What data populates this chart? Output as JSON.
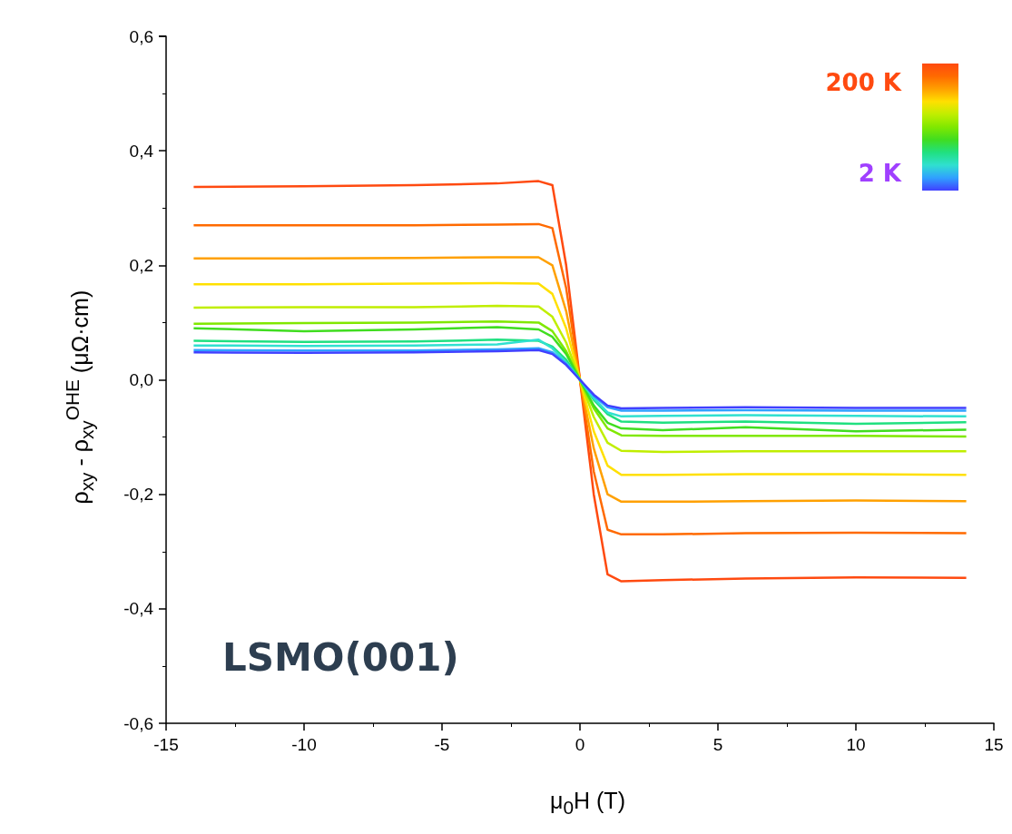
{
  "chart_data": {
    "type": "line",
    "xlabel": "μ$_{0}$H (T)",
    "ylabel": "ρ$_{xy}$ - ρ$_{xy}$$^{OHE}$ (μΩ·cm)",
    "annotations": [
      "LSMO(001)",
      "200 K",
      "2 K"
    ],
    "x": [
      -14,
      -10,
      -6,
      -3,
      -1.5,
      -1,
      -0.5,
      0,
      0.5,
      1,
      1.5,
      3,
      6,
      10,
      14
    ],
    "xlim": [
      -15,
      15
    ],
    "xticks": [
      -15,
      -10,
      -5,
      0,
      5,
      10,
      15
    ],
    "ylim": [
      -0.6,
      0.6
    ],
    "yticks": [
      {
        "value": -0.6,
        "label": "-0,6"
      },
      {
        "value": -0.4,
        "label": "-0,4"
      },
      {
        "value": -0.2,
        "label": "-0,2"
      },
      {
        "value": 0,
        "label": "0,0"
      },
      {
        "value": 0.2,
        "label": "0,2"
      },
      {
        "value": 0.4,
        "label": "0,4"
      },
      {
        "value": 0.6,
        "label": "0,6"
      }
    ],
    "series": [
      {
        "color": "#ff4a10",
        "values": [
          0.337,
          0.338,
          0.34,
          0.343,
          0.347,
          0.34,
          0.2,
          0,
          -0.2,
          -0.34,
          -0.352,
          -0.35,
          -0.347,
          -0.345,
          -0.346
        ]
      },
      {
        "color": "#ff6a00",
        "values": [
          0.27,
          0.27,
          0.27,
          0.271,
          0.272,
          0.265,
          0.16,
          0,
          -0.16,
          -0.262,
          -0.27,
          -0.27,
          -0.268,
          -0.267,
          -0.268
        ]
      },
      {
        "color": "#ffa000",
        "values": [
          0.212,
          0.212,
          0.213,
          0.214,
          0.214,
          0.2,
          0.12,
          0,
          -0.12,
          -0.2,
          -0.213,
          -0.213,
          -0.212,
          -0.211,
          -0.212
        ]
      },
      {
        "color": "#ffe000",
        "values": [
          0.167,
          0.167,
          0.168,
          0.169,
          0.168,
          0.15,
          0.09,
          0,
          -0.09,
          -0.15,
          -0.166,
          -0.166,
          -0.165,
          -0.165,
          -0.166
        ]
      },
      {
        "color": "#c0ee00",
        "values": [
          0.126,
          0.127,
          0.127,
          0.129,
          0.128,
          0.11,
          0.065,
          0,
          -0.065,
          -0.11,
          -0.124,
          -0.126,
          -0.125,
          -0.125,
          -0.125
        ]
      },
      {
        "color": "#80e800",
        "values": [
          0.098,
          0.099,
          0.1,
          0.102,
          0.1,
          0.085,
          0.05,
          0,
          -0.05,
          -0.085,
          -0.097,
          -0.098,
          -0.098,
          -0.098,
          -0.099
        ]
      },
      {
        "color": "#40dd20",
        "values": [
          0.09,
          0.085,
          0.088,
          0.092,
          0.088,
          0.075,
          0.045,
          0,
          -0.045,
          -0.075,
          -0.085,
          -0.088,
          -0.083,
          -0.09,
          -0.087
        ]
      },
      {
        "color": "#20e080",
        "values": [
          0.068,
          0.066,
          0.067,
          0.07,
          0.068,
          0.058,
          0.035,
          0,
          -0.035,
          -0.06,
          -0.073,
          -0.075,
          -0.073,
          -0.077,
          -0.074
        ]
      },
      {
        "color": "#30e0d0",
        "values": [
          0.06,
          0.059,
          0.06,
          0.062,
          0.07,
          0.055,
          0.03,
          0,
          -0.032,
          -0.057,
          -0.064,
          -0.063,
          -0.062,
          -0.063,
          -0.064
        ]
      },
      {
        "color": "#30a0ff",
        "values": [
          0.052,
          0.051,
          0.051,
          0.053,
          0.055,
          0.048,
          0.028,
          0,
          -0.028,
          -0.048,
          -0.054,
          -0.054,
          -0.053,
          -0.054,
          -0.054
        ]
      },
      {
        "color": "#4040ff",
        "values": [
          0.048,
          0.047,
          0.048,
          0.05,
          0.052,
          0.045,
          0.026,
          0,
          -0.026,
          -0.045,
          -0.05,
          -0.049,
          -0.048,
          -0.049,
          -0.049
        ]
      }
    ]
  }
}
